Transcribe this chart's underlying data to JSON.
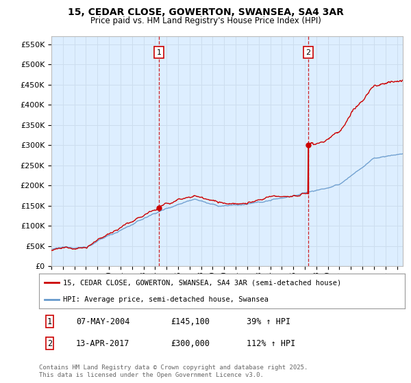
{
  "title_line1": "15, CEDAR CLOSE, GOWERTON, SWANSEA, SA4 3AR",
  "title_line2": "Price paid vs. HM Land Registry's House Price Index (HPI)",
  "background_color": "#ffffff",
  "plot_background": "#ddeeff",
  "grid_color": "#ccddee",
  "line1_color": "#cc0000",
  "line2_color": "#6699cc",
  "vline_color": "#cc0000",
  "marker_color": "#cc0000",
  "ylim": [
    0,
    570000
  ],
  "yticks": [
    0,
    50000,
    100000,
    150000,
    200000,
    250000,
    300000,
    350000,
    400000,
    450000,
    500000,
    550000
  ],
  "sale1_year": 2004.35,
  "sale1_price": 145100,
  "sale2_year": 2017.28,
  "sale2_price": 300000,
  "legend_label1": "15, CEDAR CLOSE, GOWERTON, SWANSEA, SA4 3AR (semi-detached house)",
  "legend_label2": "HPI: Average price, semi-detached house, Swansea",
  "annotation1_label": "1",
  "annotation2_label": "2",
  "table_row1": [
    "1",
    "07-MAY-2004",
    "£145,100",
    "39% ↑ HPI"
  ],
  "table_row2": [
    "2",
    "13-APR-2017",
    "£300,000",
    "112% ↑ HPI"
  ],
  "footer": "Contains HM Land Registry data © Crown copyright and database right 2025.\nThis data is licensed under the Open Government Licence v3.0.",
  "xmin": 1995,
  "xmax": 2025.5
}
